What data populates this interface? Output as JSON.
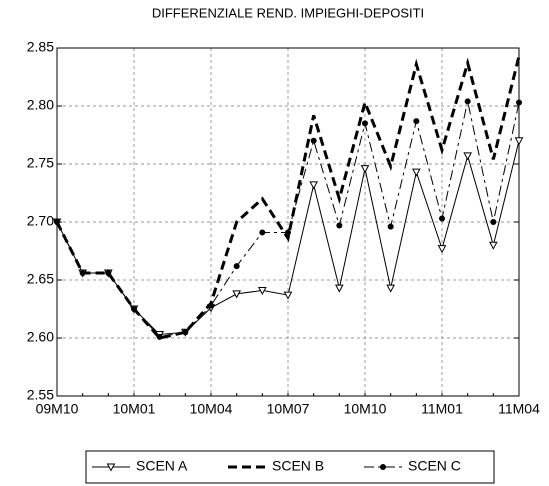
{
  "chart_data": {
    "type": "line",
    "title": "DIFFERENZIALE REND. IMPIEGHI-DEPOSITI",
    "categories": [
      "09M10",
      null,
      null,
      "10M01",
      null,
      null,
      "10M04",
      null,
      null,
      "10M07",
      null,
      null,
      "10M10",
      null,
      null,
      "11M01",
      null,
      null,
      "11M04"
    ],
    "series": [
      {
        "name": "SCEN A",
        "color": "#000000",
        "line_style": "solid",
        "marker": "triangle-down",
        "values": [
          2.7,
          2.656,
          2.656,
          2.625,
          2.603,
          2.605,
          2.626,
          2.638,
          2.641,
          2.637,
          2.732,
          2.643,
          2.746,
          2.643,
          2.743,
          2.677,
          2.757,
          2.68,
          2.77
        ]
      },
      {
        "name": "SCEN B",
        "color": "#000000",
        "line_style": "dashed",
        "marker": "none",
        "values": [
          2.7,
          2.656,
          2.656,
          2.625,
          2.6,
          2.605,
          2.63,
          2.7,
          2.72,
          2.686,
          2.792,
          2.72,
          2.803,
          2.748,
          2.836,
          2.762,
          2.837,
          2.754,
          2.843
        ]
      },
      {
        "name": "SCEN C",
        "color": "#000000",
        "line_style": "dashdot",
        "marker": "circle",
        "values": [
          2.7,
          2.656,
          2.656,
          2.625,
          2.601,
          2.605,
          2.628,
          2.662,
          2.691,
          2.691,
          2.77,
          2.697,
          2.785,
          2.696,
          2.787,
          2.703,
          2.804,
          2.7,
          2.803
        ]
      }
    ],
    "ylim": [
      2.55,
      2.85
    ],
    "yticks": [
      {
        "value": 2.55,
        "label": "2.55"
      },
      {
        "value": 2.6,
        "label": "2.60"
      },
      {
        "value": 2.65,
        "label": "2.65"
      },
      {
        "value": 2.7,
        "label": "2.70"
      },
      {
        "value": 2.75,
        "label": "2.75"
      },
      {
        "value": 2.8,
        "label": "2.80"
      },
      {
        "value": 2.85,
        "label": "2.85"
      }
    ],
    "grid": true,
    "legend": "bottom"
  }
}
